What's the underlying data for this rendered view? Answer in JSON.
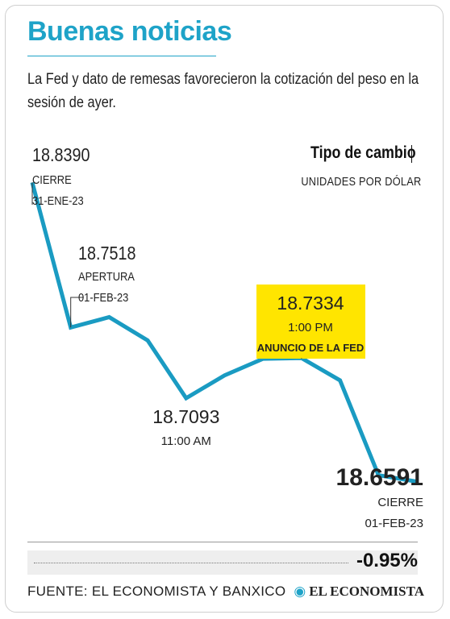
{
  "header": {
    "title": "Buenas noticias",
    "subtitle": "La Fed y dato de remesas favorecieron la cotización del peso en la sesión de ayer."
  },
  "unit": {
    "title": "Tipo de cambio",
    "subtitle": "UNIDADES POR DÓLAR"
  },
  "chart_data": {
    "type": "line",
    "title": "Tipo de cambio",
    "ylabel": "UNIDADES POR DÓLAR",
    "line_color": "#1a9bc2",
    "highlight_color": "#ffe500",
    "ylim": [
      18.64,
      18.86
    ],
    "points": [
      18.839,
      18.7518,
      18.758,
      18.744,
      18.7093,
      18.723,
      18.733,
      18.7334,
      18.72,
      18.663,
      18.6591
    ],
    "annotations": [
      {
        "value": "18.8390",
        "line1": "CIERRE",
        "line2": "31-ENE-23",
        "point_index": 0
      },
      {
        "value": "18.7518",
        "line1": "APERTURA",
        "line2": "01-FEB-23",
        "point_index": 1
      },
      {
        "value": "18.7093",
        "line1": "11:00 AM",
        "line2": "",
        "point_index": 4
      },
      {
        "value": "18.7334",
        "line1": "1:00 PM",
        "line2": "ANUNCIO DE LA FED",
        "point_index": 7
      },
      {
        "value": "18.6591",
        "line1": "CIERRE",
        "line2": "01-FEB-23",
        "point_index": 10
      }
    ]
  },
  "footer": {
    "change": "-0.95%",
    "source": "FUENTE: EL ECONOMISTA Y BANXICO",
    "logo": "EL ECONOMISTA"
  }
}
